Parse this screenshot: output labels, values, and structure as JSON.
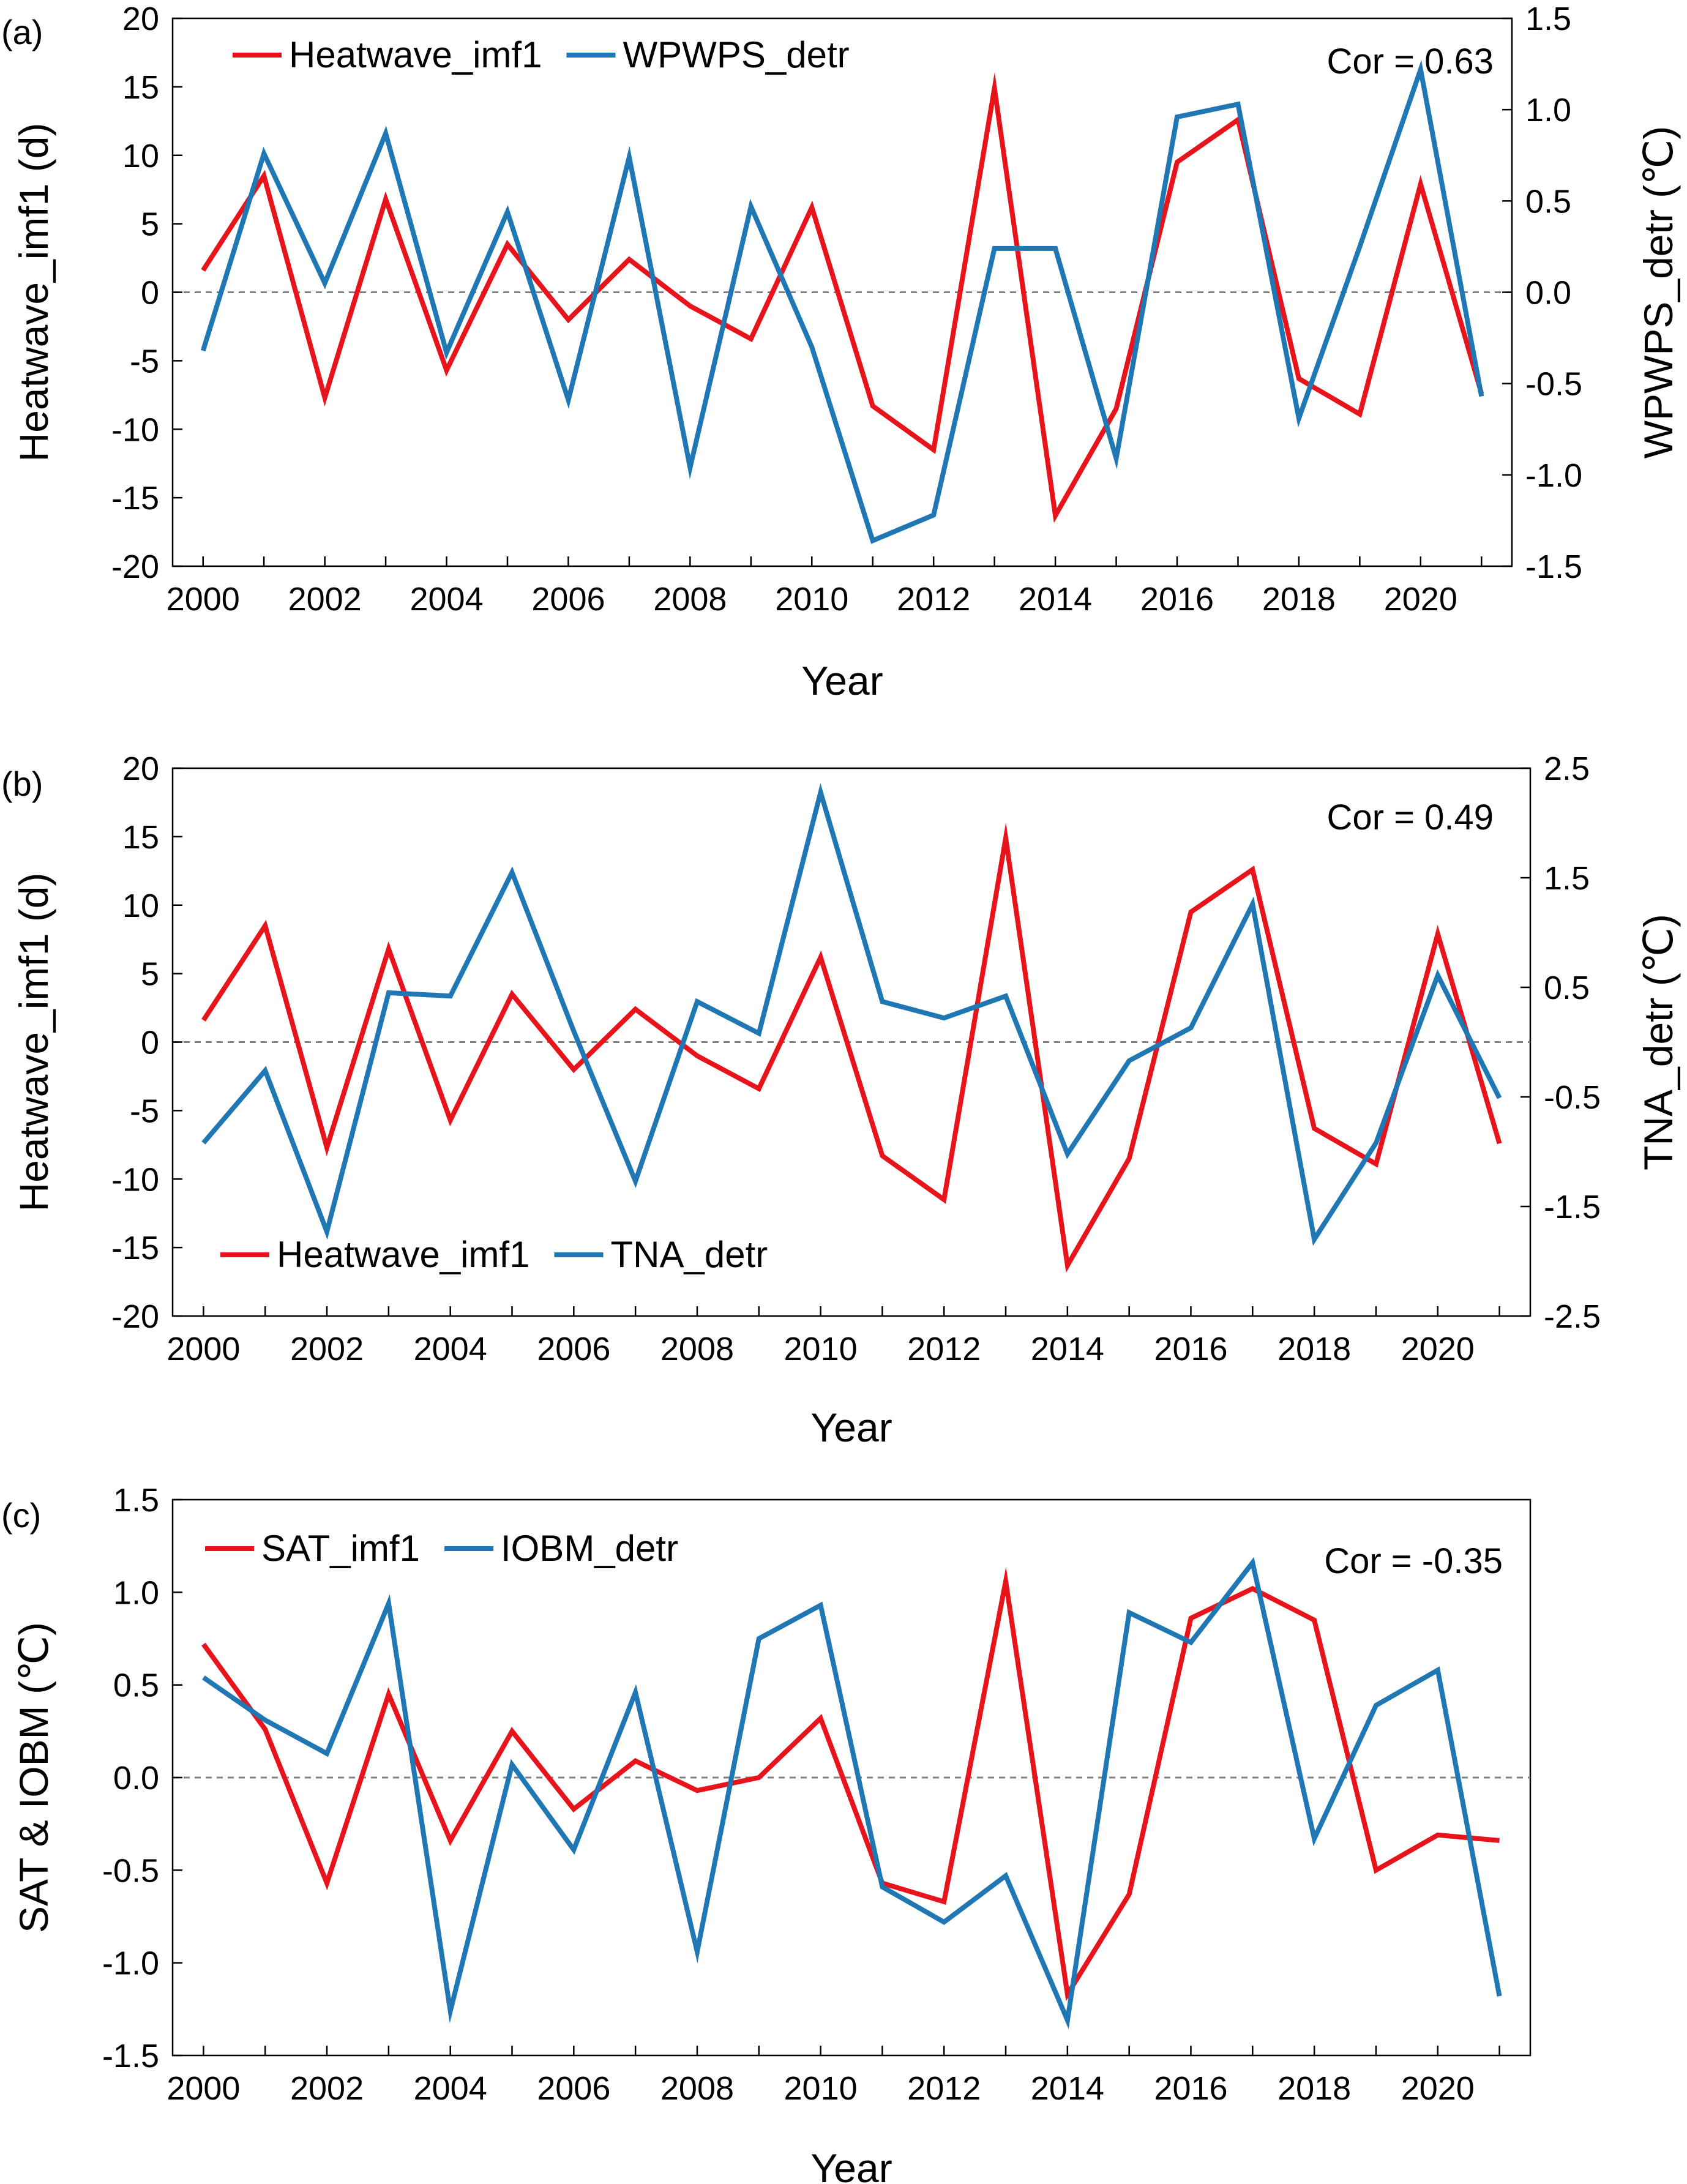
{
  "chart_data": [
    {
      "type": "line",
      "panel_label": "(a)",
      "annotation": "Cor = 0.63",
      "xlabel": "Year",
      "ylabel_left": "Heatwave_imf1 (d)",
      "ylabel_right": "WPWPS_detr (℃)",
      "x": [
        2000,
        2001,
        2002,
        2003,
        2004,
        2005,
        2006,
        2007,
        2008,
        2009,
        2010,
        2011,
        2012,
        2013,
        2014,
        2015,
        2016,
        2017,
        2018,
        2019,
        2020,
        2021
      ],
      "xlim": [
        1999.5,
        2021.5
      ],
      "x_ticks": [
        2000,
        2002,
        2004,
        2006,
        2008,
        2010,
        2012,
        2014,
        2016,
        2018,
        2020
      ],
      "y_left": {
        "lim": [
          -20,
          20
        ],
        "ticks": [
          -20,
          -15,
          -10,
          -5,
          0,
          5,
          10,
          15,
          20
        ]
      },
      "y_right": {
        "lim": [
          -1.5,
          1.5
        ],
        "ticks": [
          "-1.5",
          "-1.0",
          "-0.5",
          "0.0",
          "0.5",
          "1.0",
          "1.5"
        ]
      },
      "legend_position": "top-left",
      "series": [
        {
          "name": "Heatwave_imf1",
          "axis": "left",
          "color": "#e8141c",
          "values": [
            1.6,
            8.5,
            -7.7,
            6.8,
            -5.7,
            3.5,
            -2.0,
            2.4,
            -1.0,
            -3.4,
            6.2,
            -8.3,
            -11.5,
            14.9,
            -16.3,
            -8.5,
            9.5,
            12.6,
            -6.3,
            -8.9,
            7.9,
            -7.4
          ]
        },
        {
          "name": "WPWPS_detr",
          "axis": "right",
          "color": "#1f77b4",
          "values": [
            -0.32,
            0.76,
            0.05,
            0.87,
            -0.33,
            0.44,
            -0.59,
            0.74,
            -0.96,
            0.47,
            -0.3,
            -1.36,
            -1.22,
            0.24,
            0.24,
            -0.91,
            0.96,
            1.03,
            -0.69,
            0.25,
            1.22,
            -0.57
          ]
        }
      ]
    },
    {
      "type": "line",
      "panel_label": "(b)",
      "annotation": "Cor = 0.49",
      "xlabel": "Year",
      "ylabel_left": "Heatwave_imf1 (d)",
      "ylabel_right": "TNA_detr (℃)",
      "x": [
        2000,
        2001,
        2002,
        2003,
        2004,
        2005,
        2006,
        2007,
        2008,
        2009,
        2010,
        2011,
        2012,
        2013,
        2014,
        2015,
        2016,
        2017,
        2018,
        2019,
        2020,
        2021
      ],
      "xlim": [
        1999.5,
        2021.5
      ],
      "x_ticks": [
        2000,
        2002,
        2004,
        2006,
        2008,
        2010,
        2012,
        2014,
        2016,
        2018,
        2020
      ],
      "y_left": {
        "lim": [
          -20,
          20
        ],
        "ticks": [
          -20,
          -15,
          -10,
          -5,
          0,
          5,
          10,
          15,
          20
        ]
      },
      "y_right": {
        "lim": [
          -2.5,
          2.5
        ],
        "ticks": [
          "-2.5",
          "-1.5",
          "-0.5",
          "0.5",
          "1.5",
          "2.5"
        ]
      },
      "legend_position": "bottom-left",
      "series": [
        {
          "name": "Heatwave_imf1",
          "axis": "left",
          "color": "#e8141c",
          "values": [
            1.6,
            8.5,
            -7.7,
            6.8,
            -5.7,
            3.5,
            -2.0,
            2.4,
            -1.0,
            -3.4,
            6.2,
            -8.3,
            -11.5,
            14.9,
            -16.3,
            -8.5,
            9.5,
            12.6,
            -6.3,
            -8.9,
            7.9,
            -7.4
          ]
        },
        {
          "name": "TNA_detr",
          "axis": "right",
          "color": "#1f77b4",
          "values": [
            -0.92,
            -0.26,
            -1.73,
            0.45,
            0.42,
            1.55,
            0.1,
            -1.27,
            0.37,
            0.08,
            2.28,
            0.37,
            0.22,
            0.42,
            -1.02,
            -0.17,
            0.13,
            1.26,
            -1.8,
            -0.92,
            0.61,
            -0.51
          ]
        }
      ]
    },
    {
      "type": "line",
      "panel_label": "(c)",
      "annotation": "Cor = -0.35",
      "xlabel": "Year",
      "ylabel_left": "SAT & IOBM (℃)",
      "x": [
        2000,
        2001,
        2002,
        2003,
        2004,
        2005,
        2006,
        2007,
        2008,
        2009,
        2010,
        2011,
        2012,
        2013,
        2014,
        2015,
        2016,
        2017,
        2018,
        2019,
        2020,
        2021
      ],
      "xlim": [
        1999.5,
        2021.5
      ],
      "x_ticks": [
        2000,
        2002,
        2004,
        2006,
        2008,
        2010,
        2012,
        2014,
        2016,
        2018,
        2020
      ],
      "y_left": {
        "lim": [
          -1.5,
          1.5
        ],
        "ticks": [
          "-1.5",
          "-1.0",
          "-0.5",
          "0.0",
          "0.5",
          "1.0",
          "1.5"
        ]
      },
      "legend_position": "top-left",
      "series": [
        {
          "name": "SAT_imf1",
          "axis": "left",
          "color": "#e8141c",
          "values": [
            0.72,
            0.26,
            -0.57,
            0.45,
            -0.34,
            0.25,
            -0.17,
            0.09,
            -0.07,
            0.0,
            0.32,
            -0.57,
            -0.67,
            1.06,
            -1.17,
            -0.63,
            0.86,
            1.02,
            0.85,
            -0.5,
            -0.31,
            -0.34
          ]
        },
        {
          "name": "IOBM_detr",
          "axis": "left",
          "color": "#1f77b4",
          "values": [
            0.54,
            0.31,
            0.13,
            0.94,
            -1.26,
            0.07,
            -0.39,
            0.46,
            -0.94,
            0.75,
            0.93,
            -0.59,
            -0.78,
            -0.53,
            -1.31,
            0.89,
            0.73,
            1.16,
            -0.33,
            0.39,
            0.58,
            -1.18
          ]
        }
      ]
    }
  ]
}
